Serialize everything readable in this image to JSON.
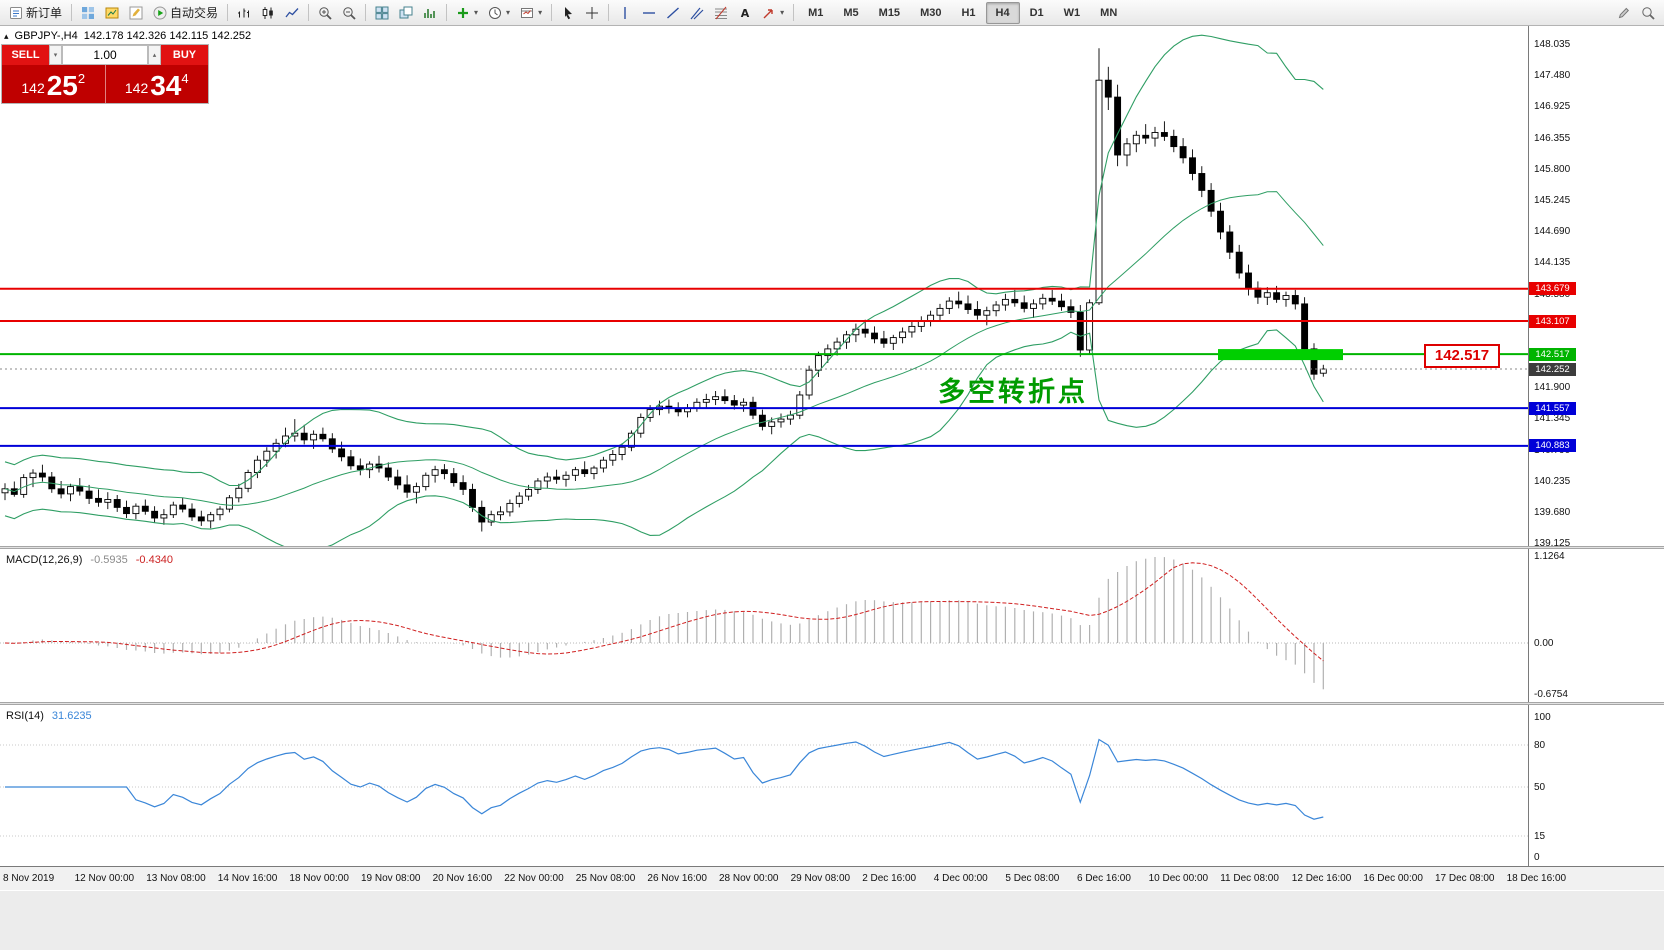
{
  "toolbar": {
    "caret_glyph": "▾",
    "groups": [
      {
        "items": [
          {
            "name": "new-order-button",
            "icon": "doc",
            "label": "新订单"
          }
        ]
      },
      {
        "items": [
          {
            "name": "charts-grid-button",
            "icon": "grid"
          },
          {
            "name": "profiles-button",
            "icon": "prof"
          },
          {
            "name": "metaeditor-button",
            "icon": "edit"
          },
          {
            "name": "auto-trading-button",
            "icon": "play",
            "label": "自动交易"
          }
        ]
      },
      {
        "items": [
          {
            "name": "bar-chart-button",
            "icon": "bars"
          },
          {
            "name": "candlestick-chart-button",
            "icon": "candle"
          },
          {
            "name": "line-chart-button",
            "icon": "line"
          }
        ]
      },
      {
        "items": [
          {
            "name": "zoom-in-button",
            "icon": "zin"
          },
          {
            "name": "zoom-out-button",
            "icon": "zout"
          }
        ]
      },
      {
        "items": [
          {
            "name": "tile-windows-button",
            "icon": "tile"
          },
          {
            "name": "cascade-windows-button",
            "icon": "casc"
          },
          {
            "name": "indicators-button",
            "icon": "ind"
          }
        ]
      },
      {
        "items": [
          {
            "name": "add-indicator-button",
            "icon": "plus",
            "caret": true
          },
          {
            "name": "periods-button",
            "icon": "clock",
            "caret": true
          },
          {
            "name": "templates-button",
            "icon": "tpl",
            "caret": true
          }
        ]
      },
      {
        "items": [
          {
            "name": "cursor-button",
            "icon": "cur"
          },
          {
            "name": "crosshair-button",
            "icon": "cross"
          }
        ]
      },
      {
        "items": [
          {
            "name": "vertical-line-button",
            "icon": "vl"
          },
          {
            "name": "horizontal-line-button",
            "icon": "hl"
          },
          {
            "name": "trendline-button",
            "icon": "tl"
          },
          {
            "name": "channel-button",
            "icon": "ch"
          },
          {
            "name": "fibonacci-button",
            "icon": "fib"
          },
          {
            "name": "text-button",
            "icon": "textA"
          },
          {
            "name": "arrows-button",
            "icon": "arrow",
            "caret": true
          }
        ]
      },
      {
        "items": [
          {
            "name": "tf-m1-button",
            "label": "M1",
            "tf": true
          },
          {
            "name": "tf-m5-button",
            "label": "M5",
            "tf": true
          },
          {
            "name": "tf-m15-button",
            "label": "M15",
            "tf": true
          },
          {
            "name": "tf-m30-button",
            "label": "M30",
            "tf": true
          },
          {
            "name": "tf-h1-button",
            "label": "H1",
            "tf": true
          },
          {
            "name": "tf-h4-button",
            "label": "H4",
            "tf": true,
            "active": true
          },
          {
            "name": "tf-d1-button",
            "label": "D1",
            "tf": true
          },
          {
            "name": "tf-w1-button",
            "label": "W1",
            "tf": true
          },
          {
            "name": "tf-mn-button",
            "label": "MN",
            "tf": true
          }
        ]
      }
    ],
    "right_items": [
      {
        "name": "notes-button",
        "icon": "pencil"
      },
      {
        "name": "search-button",
        "icon": "mag"
      }
    ]
  },
  "chart": {
    "symbol_period": "GBPJPY-,H4",
    "ohlc_text": "142.178 142.326 142.115 142.252",
    "one_click_toggle_glyph": "▴"
  },
  "trade_panel": {
    "sell_label": "SELL",
    "buy_label": "BUY",
    "volume": "1.00",
    "spin_down_glyph": "▾",
    "spin_up_glyph": "▴",
    "sell_price": {
      "prefix": "142",
      "pips": "25",
      "frac": "2"
    },
    "buy_price": {
      "prefix": "142",
      "pips": "34",
      "frac": "4"
    }
  },
  "chart_data": {
    "type": "candlestick",
    "symbol": "GBPJPY-",
    "timeframe": "H4",
    "current_ohlc": {
      "open": 142.178,
      "high": 142.326,
      "low": 142.115,
      "close": 142.252
    },
    "ylim": [
      139.125,
      148.035
    ],
    "colors": {
      "bull": "#ffffff",
      "bear": "#000000",
      "bollinger": "#2f9e64",
      "macd_hist": "#b0b0b0",
      "macd_signal": "#d02020",
      "rsi_line": "#3a86d8",
      "level_red": "#e80000",
      "level_green": "#00b400",
      "level_blue": "#0000d8",
      "highlight": "#00cf00"
    },
    "candles": [
      [
        140.05,
        140.22,
        139.92,
        140.12
      ],
      [
        140.12,
        140.25,
        139.98,
        140.02
      ],
      [
        140.02,
        140.38,
        139.96,
        140.32
      ],
      [
        140.32,
        140.47,
        140.15,
        140.4
      ],
      [
        140.4,
        140.55,
        140.25,
        140.33
      ],
      [
        140.33,
        140.42,
        140.05,
        140.12
      ],
      [
        140.12,
        140.26,
        139.95,
        140.03
      ],
      [
        140.03,
        140.21,
        139.9,
        140.16
      ],
      [
        140.16,
        140.31,
        140.0,
        140.08
      ],
      [
        140.08,
        140.19,
        139.85,
        139.95
      ],
      [
        139.95,
        140.11,
        139.8,
        139.88
      ],
      [
        139.88,
        140.06,
        139.76,
        139.93
      ],
      [
        139.93,
        140.01,
        139.71,
        139.79
      ],
      [
        139.79,
        139.91,
        139.6,
        139.68
      ],
      [
        139.68,
        139.86,
        139.58,
        139.81
      ],
      [
        139.81,
        139.93,
        139.66,
        139.72
      ],
      [
        139.72,
        139.81,
        139.52,
        139.6
      ],
      [
        139.6,
        139.76,
        139.48,
        139.66
      ],
      [
        139.66,
        139.89,
        139.6,
        139.83
      ],
      [
        139.83,
        139.96,
        139.7,
        139.76
      ],
      [
        139.76,
        139.86,
        139.55,
        139.62
      ],
      [
        139.62,
        139.73,
        139.46,
        139.55
      ],
      [
        139.55,
        139.71,
        139.42,
        139.66
      ],
      [
        139.66,
        139.81,
        139.56,
        139.76
      ],
      [
        139.76,
        140.01,
        139.7,
        139.96
      ],
      [
        139.96,
        140.21,
        139.88,
        140.13
      ],
      [
        140.13,
        140.46,
        140.06,
        140.41
      ],
      [
        140.41,
        140.71,
        140.31,
        140.63
      ],
      [
        140.63,
        140.86,
        140.51,
        140.79
      ],
      [
        140.79,
        141.01,
        140.66,
        140.93
      ],
      [
        140.93,
        141.21,
        140.86,
        141.06
      ],
      [
        141.06,
        141.36,
        140.96,
        141.11
      ],
      [
        141.11,
        141.26,
        140.91,
        140.99
      ],
      [
        140.99,
        141.16,
        140.83,
        141.09
      ],
      [
        141.09,
        141.21,
        140.96,
        141.01
      ],
      [
        141.01,
        141.11,
        140.76,
        140.83
      ],
      [
        140.83,
        140.96,
        140.61,
        140.69
      ],
      [
        140.69,
        140.81,
        140.46,
        140.53
      ],
      [
        140.53,
        140.66,
        140.36,
        140.46
      ],
      [
        140.46,
        140.61,
        140.31,
        140.56
      ],
      [
        140.56,
        140.71,
        140.41,
        140.49
      ],
      [
        140.49,
        140.59,
        140.26,
        140.33
      ],
      [
        140.33,
        140.46,
        140.11,
        140.19
      ],
      [
        140.19,
        140.36,
        139.96,
        140.06
      ],
      [
        140.06,
        140.23,
        139.86,
        140.16
      ],
      [
        140.16,
        140.41,
        140.09,
        140.36
      ],
      [
        140.36,
        140.53,
        140.23,
        140.46
      ],
      [
        140.46,
        140.56,
        140.29,
        140.39
      ],
      [
        140.39,
        140.49,
        140.16,
        140.23
      ],
      [
        140.23,
        140.36,
        140.01,
        140.11
      ],
      [
        140.11,
        140.21,
        139.71,
        139.79
      ],
      [
        139.79,
        139.91,
        139.36,
        139.53
      ],
      [
        139.53,
        139.73,
        139.46,
        139.66
      ],
      [
        139.66,
        139.81,
        139.56,
        139.71
      ],
      [
        139.71,
        139.93,
        139.63,
        139.86
      ],
      [
        139.86,
        140.06,
        139.79,
        139.99
      ],
      [
        139.99,
        140.19,
        139.91,
        140.11
      ],
      [
        140.11,
        140.31,
        140.03,
        140.26
      ],
      [
        140.26,
        140.41,
        140.13,
        140.33
      ],
      [
        140.33,
        140.46,
        140.21,
        140.29
      ],
      [
        140.29,
        140.43,
        140.16,
        140.36
      ],
      [
        140.36,
        140.51,
        140.26,
        140.46
      ],
      [
        140.46,
        140.61,
        140.33,
        140.39
      ],
      [
        140.39,
        140.53,
        140.29,
        140.49
      ],
      [
        140.49,
        140.69,
        140.41,
        140.63
      ],
      [
        140.63,
        140.81,
        140.53,
        140.73
      ],
      [
        140.73,
        140.93,
        140.63,
        140.86
      ],
      [
        140.86,
        141.16,
        140.79,
        141.11
      ],
      [
        141.11,
        141.46,
        141.03,
        141.39
      ],
      [
        141.39,
        141.61,
        141.31,
        141.53
      ],
      [
        141.53,
        141.69,
        141.43,
        141.59
      ],
      [
        141.59,
        141.71,
        141.46,
        141.56
      ],
      [
        141.56,
        141.66,
        141.41,
        141.49
      ],
      [
        141.49,
        141.63,
        141.39,
        141.56
      ],
      [
        141.56,
        141.73,
        141.49,
        141.66
      ],
      [
        141.66,
        141.81,
        141.56,
        141.71
      ],
      [
        141.71,
        141.86,
        141.61,
        141.76
      ],
      [
        141.76,
        141.89,
        141.63,
        141.69
      ],
      [
        141.69,
        141.79,
        141.53,
        141.61
      ],
      [
        141.61,
        141.73,
        141.49,
        141.66
      ],
      [
        141.66,
        141.76,
        141.36,
        141.43
      ],
      [
        141.43,
        141.53,
        141.16,
        141.23
      ],
      [
        141.23,
        141.39,
        141.09,
        141.31
      ],
      [
        141.31,
        141.46,
        141.21,
        141.36
      ],
      [
        141.36,
        141.51,
        141.26,
        141.43
      ],
      [
        141.43,
        141.86,
        141.36,
        141.79
      ],
      [
        141.79,
        142.31,
        141.71,
        142.23
      ],
      [
        142.23,
        142.56,
        142.11,
        142.49
      ],
      [
        142.49,
        142.69,
        142.36,
        142.61
      ],
      [
        142.61,
        142.81,
        142.49,
        142.73
      ],
      [
        142.73,
        142.93,
        142.61,
        142.86
      ],
      [
        142.86,
        143.06,
        142.73,
        142.96
      ],
      [
        142.96,
        143.13,
        142.81,
        142.89
      ],
      [
        142.89,
        143.01,
        142.71,
        142.79
      ],
      [
        142.79,
        142.93,
        142.63,
        142.71
      ],
      [
        142.71,
        142.86,
        142.59,
        142.81
      ],
      [
        142.81,
        142.99,
        142.71,
        142.91
      ],
      [
        142.91,
        143.09,
        142.81,
        143.01
      ],
      [
        143.01,
        143.19,
        142.91,
        143.11
      ],
      [
        143.11,
        143.29,
        143.01,
        143.21
      ],
      [
        143.21,
        143.41,
        143.11,
        143.33
      ],
      [
        143.33,
        143.53,
        143.23,
        143.46
      ],
      [
        143.46,
        143.63,
        143.33,
        143.41
      ],
      [
        143.41,
        143.56,
        143.23,
        143.31
      ],
      [
        143.31,
        143.46,
        143.13,
        143.21
      ],
      [
        143.21,
        143.36,
        143.03,
        143.29
      ],
      [
        143.29,
        143.46,
        143.19,
        143.39
      ],
      [
        143.39,
        143.59,
        143.29,
        143.49
      ],
      [
        143.49,
        143.66,
        143.36,
        143.43
      ],
      [
        143.43,
        143.56,
        143.26,
        143.33
      ],
      [
        143.33,
        143.49,
        143.16,
        143.41
      ],
      [
        143.41,
        143.59,
        143.31,
        143.51
      ],
      [
        143.51,
        143.66,
        143.39,
        143.46
      ],
      [
        143.46,
        143.59,
        143.29,
        143.36
      ],
      [
        143.36,
        143.49,
        143.16,
        143.26
      ],
      [
        143.26,
        143.39,
        142.47,
        142.59
      ],
      [
        142.59,
        143.49,
        142.51,
        143.43
      ],
      [
        143.43,
        147.96,
        143.39,
        147.39
      ],
      [
        147.39,
        147.63,
        146.86,
        147.09
      ],
      [
        147.09,
        147.31,
        145.86,
        146.06
      ],
      [
        146.06,
        146.36,
        145.86,
        146.26
      ],
      [
        146.26,
        146.49,
        146.11,
        146.41
      ],
      [
        146.41,
        146.61,
        146.26,
        146.36
      ],
      [
        146.36,
        146.56,
        146.21,
        146.46
      ],
      [
        146.46,
        146.66,
        146.31,
        146.39
      ],
      [
        146.39,
        146.51,
        146.11,
        146.21
      ],
      [
        146.21,
        146.36,
        145.91,
        146.01
      ],
      [
        146.01,
        146.16,
        145.61,
        145.73
      ],
      [
        145.73,
        145.86,
        145.31,
        145.43
      ],
      [
        145.43,
        145.56,
        144.96,
        145.06
      ],
      [
        145.06,
        145.21,
        144.56,
        144.69
      ],
      [
        144.69,
        144.81,
        144.21,
        144.33
      ],
      [
        144.33,
        144.46,
        143.86,
        143.96
      ],
      [
        143.96,
        144.11,
        143.56,
        143.69
      ],
      [
        143.69,
        143.81,
        143.41,
        143.53
      ],
      [
        143.53,
        143.71,
        143.39,
        143.61
      ],
      [
        143.61,
        143.73,
        143.43,
        143.49
      ],
      [
        143.49,
        143.63,
        143.36,
        143.56
      ],
      [
        143.56,
        143.66,
        143.31,
        143.41
      ],
      [
        143.41,
        143.53,
        142.48,
        142.61
      ],
      [
        142.61,
        142.71,
        142.06,
        142.16
      ],
      [
        142.178,
        142.326,
        142.115,
        142.252
      ]
    ],
    "indicators": {
      "bollinger": {
        "period": 20,
        "deviation": 2
      },
      "macd": {
        "label": "MACD(12,26,9)",
        "fast": 12,
        "slow": 26,
        "signal": 9,
        "value_text": "-0.5935",
        "signal_text": "-0.4340",
        "scale_labels": [
          "1.1264",
          "0.00",
          "-0.6754"
        ]
      },
      "rsi": {
        "label": "RSI(14)",
        "period": 14,
        "value_text": "31.6235",
        "levels": [
          80,
          50,
          15
        ],
        "scale_labels": [
          "100",
          "80",
          "50",
          "15",
          "0"
        ]
      }
    },
    "levels": [
      {
        "price": 143.679,
        "label": "143.679",
        "color": "#e80000"
      },
      {
        "price": 143.107,
        "label": "143.107",
        "color": "#e80000"
      },
      {
        "price": 142.517,
        "label": "142.517",
        "color": "#00b400"
      },
      {
        "price": 141.557,
        "label": "141.557",
        "color": "#0000d8"
      },
      {
        "price": 140.883,
        "label": "140.883",
        "color": "#0000d8"
      }
    ],
    "current_price": {
      "value": 142.252,
      "label": "142.252"
    },
    "highlight_rect": {
      "price": 142.517,
      "x_start": 1218,
      "x_end": 1343,
      "color": "#00cf00"
    },
    "annotation": {
      "text": "多空转折点",
      "color": "#009b00",
      "x": 938,
      "y": 344
    },
    "price_label_box": {
      "text": "142.517",
      "x": 1424,
      "y": 318
    },
    "price_scale_labels": [
      "148.035",
      "147.480",
      "146.925",
      "146.355",
      "145.800",
      "145.245",
      "144.690",
      "144.135",
      "143.580",
      "143.025",
      "142.470",
      "141.900",
      "141.345",
      "140.790",
      "140.235",
      "139.680",
      "139.125"
    ],
    "time_labels": [
      "8 Nov 2019",
      "12 Nov 00:00",
      "13 Nov 08:00",
      "14 Nov 16:00",
      "18 Nov 00:00",
      "19 Nov 08:00",
      "20 Nov 16:00",
      "22 Nov 00:00",
      "25 Nov 08:00",
      "26 Nov 16:00",
      "28 Nov 00:00",
      "29 Nov 08:00",
      "2 Dec 16:00",
      "4 Dec 00:00",
      "5 Dec 08:00",
      "6 Dec 16:00",
      "10 Dec 00:00",
      "11 Dec 08:00",
      "12 Dec 16:00",
      "16 Dec 00:00",
      "17 Dec 08:00",
      "18 Dec 16:00"
    ],
    "legend_position": "none",
    "grid": false
  }
}
